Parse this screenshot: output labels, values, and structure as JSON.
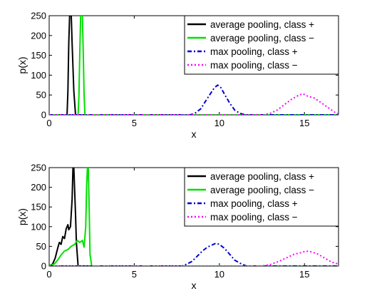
{
  "chart_data": [
    {
      "type": "line",
      "xlabel": "x",
      "ylabel": "p(x)",
      "xlim": [
        0,
        17
      ],
      "ylim": [
        0,
        250
      ],
      "xticks": [
        "0",
        "5",
        "10",
        "15"
      ],
      "yticks": [
        "0",
        "50",
        "100",
        "150",
        "200",
        "250"
      ],
      "legend_position": "top-right",
      "series": [
        {
          "name": "average pooling, class +",
          "color": "#000000",
          "dash": "solid",
          "x": [
            0,
            1.05,
            1.1,
            1.15,
            1.2,
            1.3,
            1.35,
            1.45,
            1.55,
            17
          ],
          "y": [
            0,
            0,
            60,
            180,
            250,
            250,
            180,
            60,
            0,
            0
          ]
        },
        {
          "name": "average pooling, class −",
          "color": "#00e000",
          "dash": "solid",
          "x": [
            0,
            1.7,
            1.75,
            1.8,
            1.85,
            1.95,
            2.0,
            2.05,
            2.1,
            17
          ],
          "y": [
            0,
            0,
            50,
            160,
            250,
            250,
            160,
            50,
            0,
            0
          ]
        },
        {
          "name": "max pooling, class +",
          "color": "#0000cc",
          "dash": "dashdot",
          "x": [
            0,
            8.3,
            8.6,
            8.9,
            9.2,
            9.5,
            9.7,
            9.9,
            10.1,
            10.3,
            10.6,
            10.9,
            11.2,
            11.5,
            17
          ],
          "y": [
            0,
            0,
            5,
            15,
            35,
            55,
            68,
            75,
            68,
            52,
            30,
            12,
            4,
            0,
            0
          ]
        },
        {
          "name": "max pooling, class −",
          "color": "#ff00ff",
          "dash": "dotted",
          "x": [
            0,
            12.6,
            13.0,
            13.4,
            13.8,
            14.2,
            14.6,
            14.9,
            15.2,
            15.6,
            16.0,
            16.4,
            16.8,
            17
          ],
          "y": [
            0,
            0,
            4,
            12,
            25,
            38,
            48,
            53,
            47,
            42,
            30,
            18,
            6,
            2
          ]
        }
      ]
    },
    {
      "type": "line",
      "xlabel": "x",
      "ylabel": "p(x)",
      "xlim": [
        0,
        17
      ],
      "ylim": [
        0,
        250
      ],
      "xticks": [
        "0",
        "5",
        "10",
        "15"
      ],
      "yticks": [
        "0",
        "50",
        "100",
        "150",
        "200",
        "250"
      ],
      "legend_position": "top-right",
      "series": [
        {
          "name": "average pooling, class +",
          "color": "#000000",
          "dash": "solid",
          "x": [
            0,
            0.2,
            0.35,
            0.5,
            0.6,
            0.7,
            0.8,
            0.9,
            1.0,
            1.1,
            1.15,
            1.25,
            1.35,
            1.4,
            1.45,
            1.55,
            1.6,
            1.7,
            17
          ],
          "y": [
            0,
            5,
            20,
            45,
            60,
            55,
            75,
            70,
            95,
            105,
            92,
            100,
            170,
            250,
            250,
            130,
            60,
            0,
            0
          ]
        },
        {
          "name": "average pooling, class −",
          "color": "#00e000",
          "dash": "solid",
          "x": [
            0,
            0.3,
            0.5,
            0.7,
            0.9,
            1.1,
            1.3,
            1.5,
            1.65,
            1.8,
            1.95,
            2.05,
            2.15,
            2.2,
            2.25,
            2.3,
            2.35,
            2.4,
            2.5,
            17
          ],
          "y": [
            0,
            5,
            15,
            28,
            38,
            42,
            50,
            55,
            65,
            60,
            65,
            48,
            100,
            200,
            250,
            250,
            150,
            30,
            0,
            0
          ]
        },
        {
          "name": "max pooling, class +",
          "color": "#0000cc",
          "dash": "dashdot",
          "x": [
            0,
            7.8,
            8.1,
            8.4,
            8.7,
            9.0,
            9.3,
            9.5,
            9.8,
            10.0,
            10.3,
            10.6,
            10.9,
            11.3,
            11.6,
            17
          ],
          "y": [
            0,
            0,
            5,
            12,
            25,
            38,
            48,
            52,
            58,
            55,
            45,
            30,
            15,
            5,
            0,
            0
          ]
        },
        {
          "name": "max pooling, class −",
          "color": "#ff00ff",
          "dash": "dotted",
          "x": [
            0,
            12.5,
            13.0,
            13.5,
            14.0,
            14.4,
            14.8,
            15.1,
            15.4,
            15.8,
            16.2,
            16.6,
            17
          ],
          "y": [
            0,
            0,
            4,
            12,
            22,
            30,
            34,
            38,
            36,
            30,
            20,
            10,
            5
          ]
        }
      ]
    }
  ]
}
